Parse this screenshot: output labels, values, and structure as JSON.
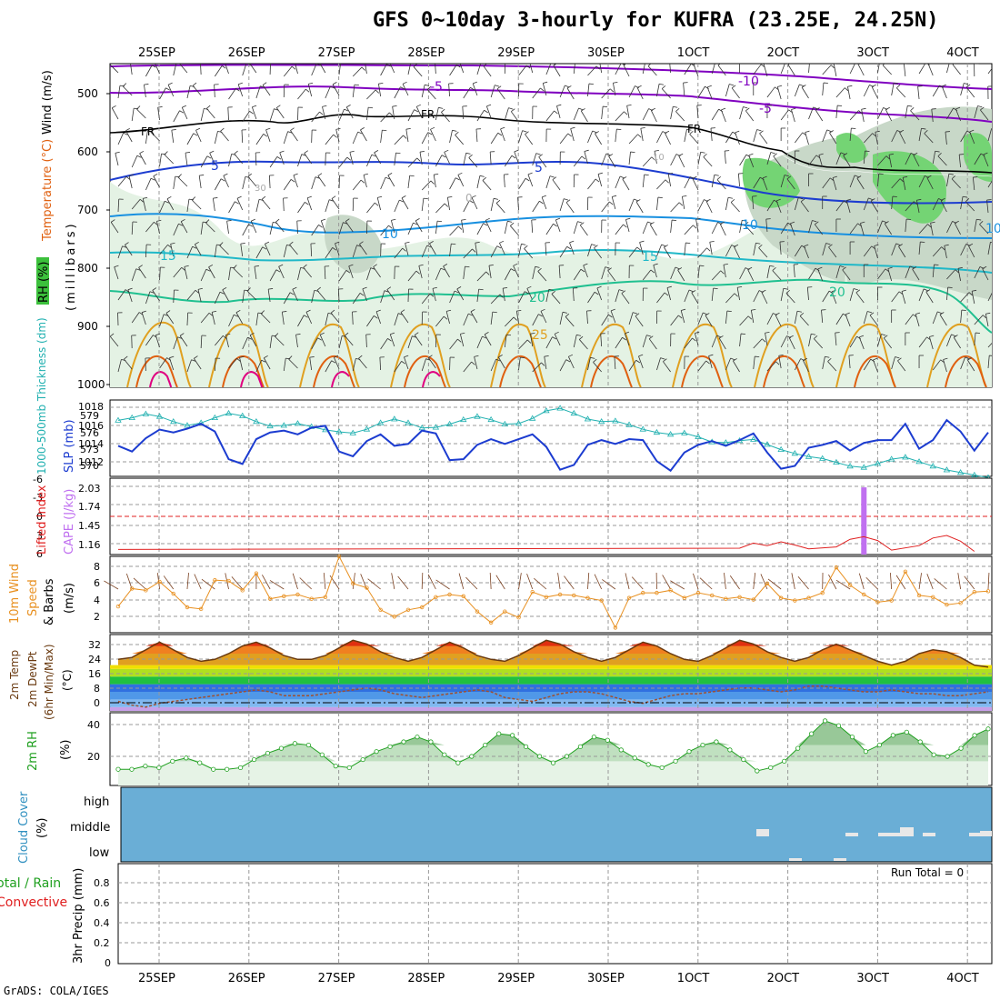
{
  "title": "GFS 0~10day 3-hourly for KUFRA (23.25E, 24.25N)",
  "credit": "GrADS: COLA/IGES",
  "date_labels": [
    "25SEP",
    "26SEP",
    "27SEP",
    "28SEP",
    "29SEP",
    "30SEP",
    "1OCT",
    "2OCT",
    "3OCT",
    "4OCT"
  ],
  "run_total_label": "Run Total = 0",
  "colors": {
    "purple": "#8000c0",
    "blue": "#1c3cd0",
    "cyan": "#20b0c8",
    "teal": "#20c090",
    "orange": "#e0a020",
    "dorange": "#e06010",
    "magenta": "#e00080",
    "green": "#30b040",
    "rh_fill": "#dcefdc",
    "cloud": "#6aaed6",
    "cape": "#c070f0",
    "li": "#e02020",
    "wind": "#e89020",
    "thick": "#20b0b0",
    "slp": "#1c3cd0"
  },
  "panels": {
    "upper": {
      "ylabel_wind": "Wind (m/s)",
      "ylabel_temp": "Temperature (°C)",
      "ylabel_rh": "RH (%)",
      "ylabel_mb": "(millibars)",
      "levels": [
        "500",
        "600",
        "700",
        "800",
        "900",
        "1000"
      ],
      "contour_labels": [
        "-10",
        "-5",
        "-5",
        "FR",
        "FR",
        "FR",
        "5",
        "5",
        "10",
        "10",
        "10",
        "15",
        "15",
        "20",
        "20",
        "25",
        "30",
        "0",
        "10"
      ]
    },
    "thickness": {
      "ylabel_left": "1000-500mb Thickness (dm)",
      "ylabel_right": "SLP (mb)",
      "left_ticks": [
        "579",
        "576",
        "573",
        "570"
      ],
      "right_ticks": [
        "1018",
        "1016",
        "1014",
        "1012"
      ]
    },
    "cape": {
      "ylabel_left": "Lifted Index",
      "ylabel_right": "CAPE (J/kg)",
      "left_ticks": [
        "-6",
        "-3",
        "0",
        "3",
        "6"
      ],
      "right_ticks": [
        "2.03",
        "1.74",
        "1.45",
        "1.16"
      ]
    },
    "wind10m": {
      "ylabel_a": "10m Wind",
      "ylabel_b": "Speed",
      "ylabel_c": "& Barbs",
      "ylabel_d": "(m/s)",
      "ticks": [
        "8",
        "6",
        "4",
        "2"
      ]
    },
    "temp": {
      "ylabel_a": "2m Temp",
      "ylabel_b": "2m DewPt",
      "ylabel_c": "(6hr Min/Max)",
      "ylabel_d": "(°C)",
      "ticks": [
        "32",
        "24",
        "16",
        "8",
        "0"
      ]
    },
    "rh": {
      "ylabel_a": "2m RH",
      "ylabel_b": "(%)",
      "ticks": [
        "40",
        "20"
      ]
    },
    "cloud": {
      "ylabel_a": "Cloud Cover",
      "ylabel_b": "(%)",
      "levels": [
        "high",
        "middle",
        "low"
      ]
    },
    "precip": {
      "ylabel_a": "Total / Rain",
      "ylabel_b": "Convective",
      "ylabel_c": "3hr Precip (mm)",
      "ticks": [
        "0.8",
        "0.6",
        "0.4",
        "0.2",
        "0"
      ]
    }
  },
  "chart_data": [
    {
      "type": "line",
      "title": "1000-500mb Thickness (dm) and SLP (mb)",
      "x_unit": "3-hourly steps from 25SEP",
      "series": [
        {
          "name": "Thickness (dm)",
          "ylim": [
            569,
            581
          ],
          "values": [
            577.8,
            578.2,
            578.8,
            578.4,
            577.6,
            577.0,
            577.4,
            578.2,
            578.9,
            578.5,
            577.6,
            576.9,
            577.0,
            577.3,
            576.8,
            576.3,
            576.0,
            575.8,
            576.4,
            577.4,
            578.0,
            577.4,
            576.6,
            576.7,
            577.2,
            577.9,
            578.4,
            577.9,
            577.2,
            577.3,
            578.1,
            579.3,
            579.7,
            578.9,
            578.0,
            577.6,
            577.7,
            577.1,
            576.4,
            575.9,
            575.6,
            575.8,
            575.2,
            574.4,
            574.3,
            574.6,
            574.8,
            574.0,
            573.2,
            572.6,
            572.1,
            571.8,
            571.2,
            570.6,
            570.4,
            571.0,
            571.7,
            572.0,
            571.3,
            570.6,
            570.0,
            569.6,
            569.2,
            568.8
          ]
        },
        {
          "name": "SLP (mb)",
          "ylim": [
            1010.8,
            1018.8
          ],
          "values": [
            1014.0,
            1013.4,
            1014.8,
            1015.7,
            1015.4,
            1015.8,
            1016.3,
            1015.5,
            1012.6,
            1012.1,
            1014.7,
            1015.4,
            1015.6,
            1015.2,
            1015.9,
            1016.1,
            1013.4,
            1012.9,
            1014.5,
            1015.2,
            1014.0,
            1014.2,
            1015.6,
            1015.3,
            1012.5,
            1012.6,
            1014.1,
            1014.7,
            1014.2,
            1014.7,
            1015.2,
            1013.9,
            1011.5,
            1012.0,
            1014.1,
            1014.6,
            1014.2,
            1014.7,
            1014.6,
            1012.4,
            1011.4,
            1013.3,
            1014.1,
            1014.5,
            1014.0,
            1014.6,
            1015.3,
            1013.3,
            1011.6,
            1011.9,
            1013.8,
            1014.1,
            1014.5,
            1013.5,
            1014.3,
            1014.6,
            1014.6,
            1016.3,
            1013.7,
            1014.6,
            1016.7,
            1015.5,
            1013.5,
            1015.4
          ]
        }
      ]
    },
    {
      "type": "bar",
      "title": "CAPE (J/kg) / Lifted Index",
      "series": [
        {
          "name": "CAPE (J/kg)",
          "points": [
            {
              "step": 54,
              "value": 2.0
            }
          ]
        },
        {
          "name": "Lifted Index",
          "values": [
            5.2,
            null,
            null,
            null,
            null,
            null,
            null,
            null,
            null,
            null,
            null,
            null,
            null,
            null,
            null,
            null,
            null,
            null,
            null,
            null,
            null,
            null,
            null,
            null,
            null,
            null,
            null,
            null,
            null,
            null,
            null,
            null,
            null,
            null,
            null,
            null,
            null,
            null,
            null,
            null,
            null,
            null,
            null,
            null,
            null,
            5.0,
            4.2,
            4.6,
            4.0,
            4.5,
            5.1,
            null,
            4.8,
            3.6,
            3.2,
            3.8,
            5.3,
            null,
            4.6,
            3.4,
            3.0,
            3.9,
            5.5,
            null
          ]
        }
      ]
    },
    {
      "type": "line",
      "title": "10m Wind Speed (m/s)",
      "ylim": [
        0,
        9
      ],
      "values": [
        3.1,
        5.2,
        5.0,
        6.0,
        4.6,
        3.0,
        2.8,
        6.2,
        6.1,
        5.0,
        7.0,
        4.0,
        4.3,
        4.5,
        4.0,
        4.2,
        9.0,
        5.8,
        5.3,
        2.7,
        1.9,
        2.7,
        3.0,
        4.2,
        4.5,
        4.3,
        2.5,
        1.2,
        2.5,
        1.8,
        4.8,
        4.2,
        4.5,
        4.4,
        4.1,
        3.8,
        0.6,
        4.1,
        4.7,
        4.7,
        5.0,
        4.1,
        4.7,
        4.4,
        4.0,
        4.2,
        3.9,
        5.8,
        4.1,
        3.8,
        4.1,
        4.7,
        7.7,
        5.6,
        4.5,
        3.6,
        3.8,
        7.2,
        4.4,
        4.2,
        3.3,
        3.5,
        4.8,
        4.9
      ]
    },
    {
      "type": "line",
      "title": "2m Temp / 2m DewPt (°C)",
      "ylim": [
        -2,
        38
      ],
      "series": [
        {
          "name": "2m Temp",
          "values": [
            25,
            26,
            30,
            34,
            30,
            26,
            24,
            25,
            28,
            32,
            34,
            31,
            27,
            25,
            25,
            27,
            31,
            35,
            33,
            29,
            26,
            24,
            26,
            30,
            34,
            31,
            27,
            25,
            24,
            27,
            31,
            35,
            33,
            29,
            26,
            24,
            26,
            30,
            34,
            32,
            28,
            25,
            24,
            27,
            31,
            35,
            33,
            29,
            26,
            24,
            26,
            30,
            33,
            30,
            27,
            24,
            22,
            24,
            28,
            30,
            29,
            26,
            22,
            21
          ]
        },
        {
          "name": "2m DewPt",
          "values": [
            3,
            1,
            0,
            2,
            3,
            4,
            5,
            6,
            7,
            8,
            9,
            8,
            6,
            6,
            6,
            7,
            8,
            9,
            10,
            9,
            7,
            6,
            5,
            6,
            7,
            8,
            9,
            8,
            5,
            4,
            3,
            5,
            7,
            8,
            8,
            7,
            5,
            3,
            2,
            4,
            6,
            7,
            7,
            8,
            9,
            10,
            10,
            9,
            8,
            9,
            11,
            11,
            10,
            9,
            8,
            8,
            9,
            8,
            7,
            7,
            6,
            6,
            7,
            8
          ]
        }
      ]
    },
    {
      "type": "area",
      "title": "2m RH (%)",
      "ylim": [
        5,
        50
      ],
      "values": [
        15,
        15,
        17,
        16,
        20,
        22,
        19,
        15,
        15,
        16,
        21,
        25,
        28,
        31,
        30,
        24,
        17,
        16,
        21,
        26,
        29,
        32,
        35,
        32,
        24,
        19,
        23,
        30,
        37,
        36,
        29,
        23,
        19,
        23,
        29,
        35,
        33,
        27,
        22,
        18,
        16,
        20,
        26,
        30,
        32,
        27,
        21,
        14,
        16,
        20,
        28,
        37,
        45,
        42,
        35,
        26,
        30,
        36,
        38,
        32,
        24,
        23,
        28,
        36,
        40
      ]
    },
    {
      "type": "heatmap",
      "title": "Cloud Cover (%)",
      "rows": [
        "high",
        "middle",
        "low"
      ],
      "values": "clear sky; a few small mid/low cloud patches after 2OCT"
    },
    {
      "type": "bar",
      "title": "3hr Precip (mm)",
      "ylim": [
        0,
        1.0
      ],
      "values": []
    }
  ]
}
